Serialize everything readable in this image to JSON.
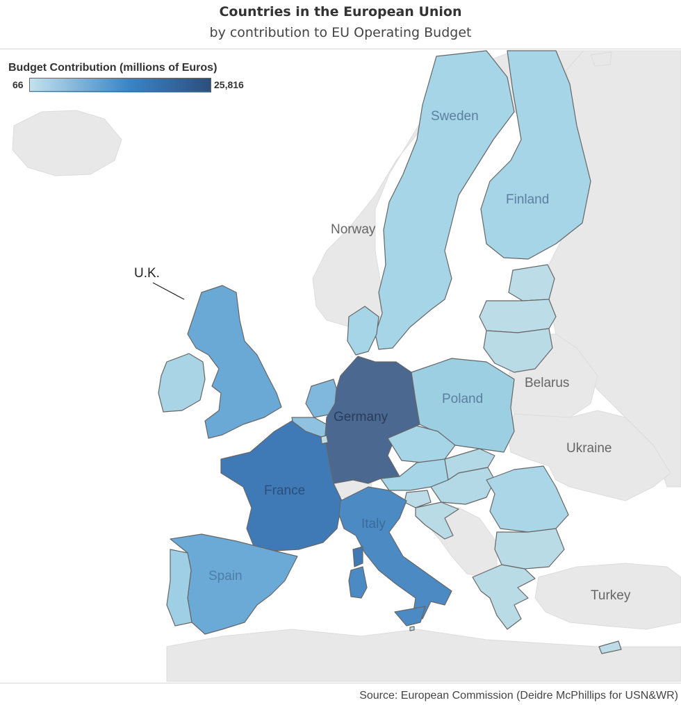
{
  "header": {
    "title": "Countries in the European Union",
    "subtitle": "by contribution to EU Operating Budget"
  },
  "legend": {
    "title": "Budget Contribution (millions of Euros)",
    "min_label": "66",
    "max_label": "25,816",
    "min_value": 66,
    "max_value": 25816,
    "color_low": "#c4e3ee",
    "color_mid": "#3b84c4",
    "color_high": "#2c4e7c"
  },
  "colors": {
    "non_eu_land": "#e8e8e8",
    "border": "#666666",
    "water": "#ffffff",
    "label_eu": "#5b7fa0",
    "label_non_eu": "#666666"
  },
  "labels": {
    "sweden": "Sweden",
    "finland": "Finland",
    "norway": "Norway",
    "belarus": "Belarus",
    "poland": "Poland",
    "germany": "Germany",
    "ukraine": "Ukraine",
    "france": "France",
    "italy": "Italy",
    "spain": "Spain",
    "turkey": "Turkey",
    "uk_callout": "U.K."
  },
  "source": "Source: European Commission (Deidre McPhillips for USN&WR)"
}
